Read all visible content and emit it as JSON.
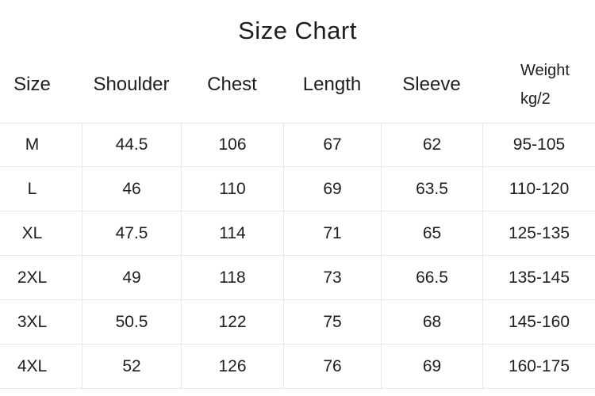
{
  "title": "Size Chart",
  "chart_data": {
    "type": "table",
    "title": "Size Chart",
    "columns": [
      "Size",
      "Shoulder",
      "Chest",
      "Length",
      "Sleeve",
      "Weight kg/2"
    ],
    "rows": [
      [
        "M",
        "44.5",
        "106",
        "67",
        "62",
        "95-105"
      ],
      [
        "L",
        "46",
        "110",
        "69",
        "63.5",
        "110-120"
      ],
      [
        "XL",
        "47.5",
        "114",
        "71",
        "65",
        "125-135"
      ],
      [
        "2XL",
        "49",
        "118",
        "73",
        "66.5",
        "135-145"
      ],
      [
        "3XL",
        "50.5",
        "122",
        "75",
        "68",
        "145-160"
      ],
      [
        "4XL",
        "52",
        "126",
        "76",
        "69",
        "160-175"
      ]
    ],
    "layout": {
      "grid": "on",
      "grid_lines": "light horizontal row separators and vertical column separators below header",
      "header_position": "top"
    }
  },
  "header": {
    "size": "Size",
    "shoulder": "Shoulder",
    "chest": "Chest",
    "length": "Length",
    "sleeve": "Sleeve",
    "weight_line1": "Weight",
    "weight_line2": "kg/2"
  },
  "colors": {
    "text": "#1e1e1e",
    "grid_line": "#e8e8e8",
    "background": "#ffffff"
  }
}
